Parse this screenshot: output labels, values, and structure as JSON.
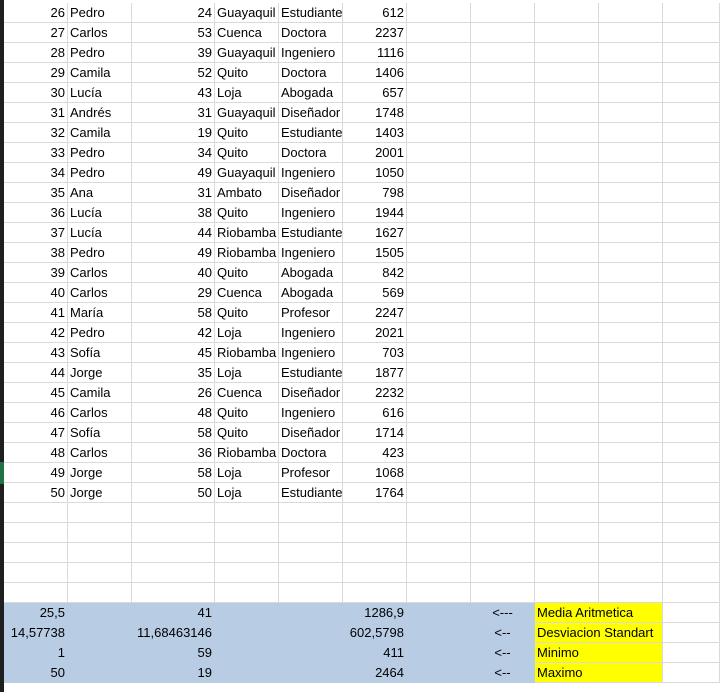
{
  "rows": [
    {
      "id": "26",
      "name": "Pedro",
      "age": "24",
      "city": "Guayaquil",
      "job": "Estudiante",
      "value": "612"
    },
    {
      "id": "27",
      "name": "Carlos",
      "age": "53",
      "city": "Cuenca",
      "job": "Doctora",
      "value": "2237"
    },
    {
      "id": "28",
      "name": "Pedro",
      "age": "39",
      "city": "Guayaquil",
      "job": "Ingeniero",
      "value": "1116"
    },
    {
      "id": "29",
      "name": "Camila",
      "age": "52",
      "city": "Quito",
      "job": "Doctora",
      "value": "1406"
    },
    {
      "id": "30",
      "name": "Lucía",
      "age": "43",
      "city": "Loja",
      "job": "Abogada",
      "value": "657"
    },
    {
      "id": "31",
      "name": "Andrés",
      "age": "31",
      "city": "Guayaquil",
      "job": "Diseñador",
      "value": "1748"
    },
    {
      "id": "32",
      "name": "Camila",
      "age": "19",
      "city": "Quito",
      "job": "Estudiante",
      "value": "1403"
    },
    {
      "id": "33",
      "name": "Pedro",
      "age": "34",
      "city": "Quito",
      "job": "Doctora",
      "value": "2001"
    },
    {
      "id": "34",
      "name": "Pedro",
      "age": "49",
      "city": "Guayaquil",
      "job": "Ingeniero",
      "value": "1050"
    },
    {
      "id": "35",
      "name": "Ana",
      "age": "31",
      "city": "Ambato",
      "job": "Diseñador",
      "value": "798"
    },
    {
      "id": "36",
      "name": "Lucía",
      "age": "38",
      "city": "Quito",
      "job": "Ingeniero",
      "value": "1944"
    },
    {
      "id": "37",
      "name": "Lucía",
      "age": "44",
      "city": "Riobamba",
      "job": "Estudiante",
      "value": "1627"
    },
    {
      "id": "38",
      "name": "Pedro",
      "age": "49",
      "city": "Riobamba",
      "job": "Ingeniero",
      "value": "1505"
    },
    {
      "id": "39",
      "name": "Carlos",
      "age": "40",
      "city": "Quito",
      "job": "Abogada",
      "value": "842"
    },
    {
      "id": "40",
      "name": "Carlos",
      "age": "29",
      "city": "Cuenca",
      "job": "Abogada",
      "value": "569"
    },
    {
      "id": "41",
      "name": "María",
      "age": "58",
      "city": "Quito",
      "job": "Profesor",
      "value": "2247"
    },
    {
      "id": "42",
      "name": "Pedro",
      "age": "42",
      "city": "Loja",
      "job": "Ingeniero",
      "value": "2021"
    },
    {
      "id": "43",
      "name": "Sofía",
      "age": "45",
      "city": "Riobamba",
      "job": "Ingeniero",
      "value": "703"
    },
    {
      "id": "44",
      "name": "Jorge",
      "age": "35",
      "city": "Loja",
      "job": "Estudiante",
      "value": "1877"
    },
    {
      "id": "45",
      "name": "Camila",
      "age": "26",
      "city": "Cuenca",
      "job": "Diseñador",
      "value": "2232"
    },
    {
      "id": "46",
      "name": "Carlos",
      "age": "48",
      "city": "Quito",
      "job": "Ingeniero",
      "value": "616"
    },
    {
      "id": "47",
      "name": "Sofía",
      "age": "58",
      "city": "Quito",
      "job": "Diseñador",
      "value": "1714"
    },
    {
      "id": "48",
      "name": "Carlos",
      "age": "36",
      "city": "Riobamba",
      "job": "Doctora",
      "value": "423"
    },
    {
      "id": "49",
      "name": "Jorge",
      "age": "58",
      "city": "Loja",
      "job": "Profesor",
      "value": "1068"
    },
    {
      "id": "50",
      "name": "Jorge",
      "age": "50",
      "city": "Loja",
      "job": "Estudiante",
      "value": "1764"
    }
  ],
  "stats": [
    {
      "a": "25,5",
      "c": "41",
      "f": "1286,9",
      "arrow": "<---",
      "label": "Media Aritmetica"
    },
    {
      "a": "14,57738",
      "c": "11,68463146",
      "f": "602,5798",
      "arrow": "<--",
      "label": "Desviacion Standart"
    },
    {
      "a": "1",
      "c": "59",
      "f": "411",
      "arrow": "<--",
      "label": "Minimo"
    },
    {
      "a": "50",
      "c": "19",
      "f": "2464",
      "arrow": "<--",
      "label": "Maximo"
    }
  ]
}
